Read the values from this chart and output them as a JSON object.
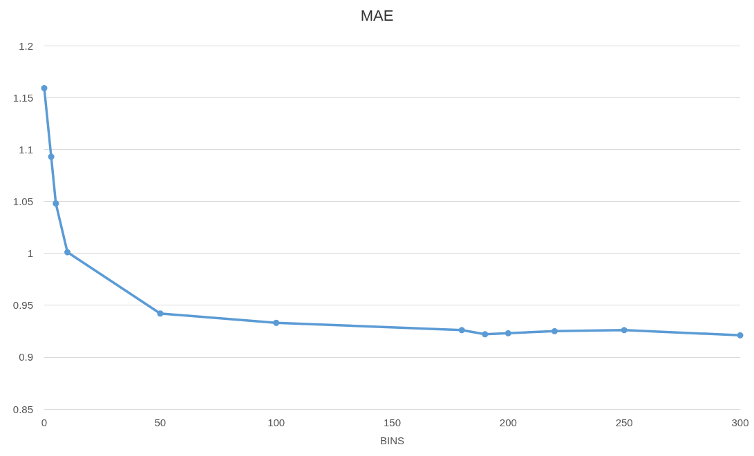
{
  "chart_data": {
    "type": "line",
    "title": "MAE",
    "xlabel": "BINS",
    "x": [
      0,
      3,
      5,
      10,
      50,
      100,
      180,
      190,
      200,
      220,
      250,
      300
    ],
    "series": [
      {
        "color": "#5b9bd5",
        "values": [
          1.159,
          1.093,
          1.048,
          1.001,
          0.942,
          0.933,
          0.926,
          0.922,
          0.923,
          0.925,
          0.926,
          0.921
        ]
      }
    ],
    "xlim": [
      0,
      300
    ],
    "xticks": [
      0,
      50,
      100,
      150,
      200,
      250,
      300
    ],
    "ylim": [
      0.85,
      1.2
    ],
    "yticks": [
      0.85,
      0.9,
      0.95,
      1,
      1.05,
      1.1,
      1.15,
      1.2
    ],
    "grid": "y",
    "marker": "circle",
    "line_style": "solid"
  }
}
